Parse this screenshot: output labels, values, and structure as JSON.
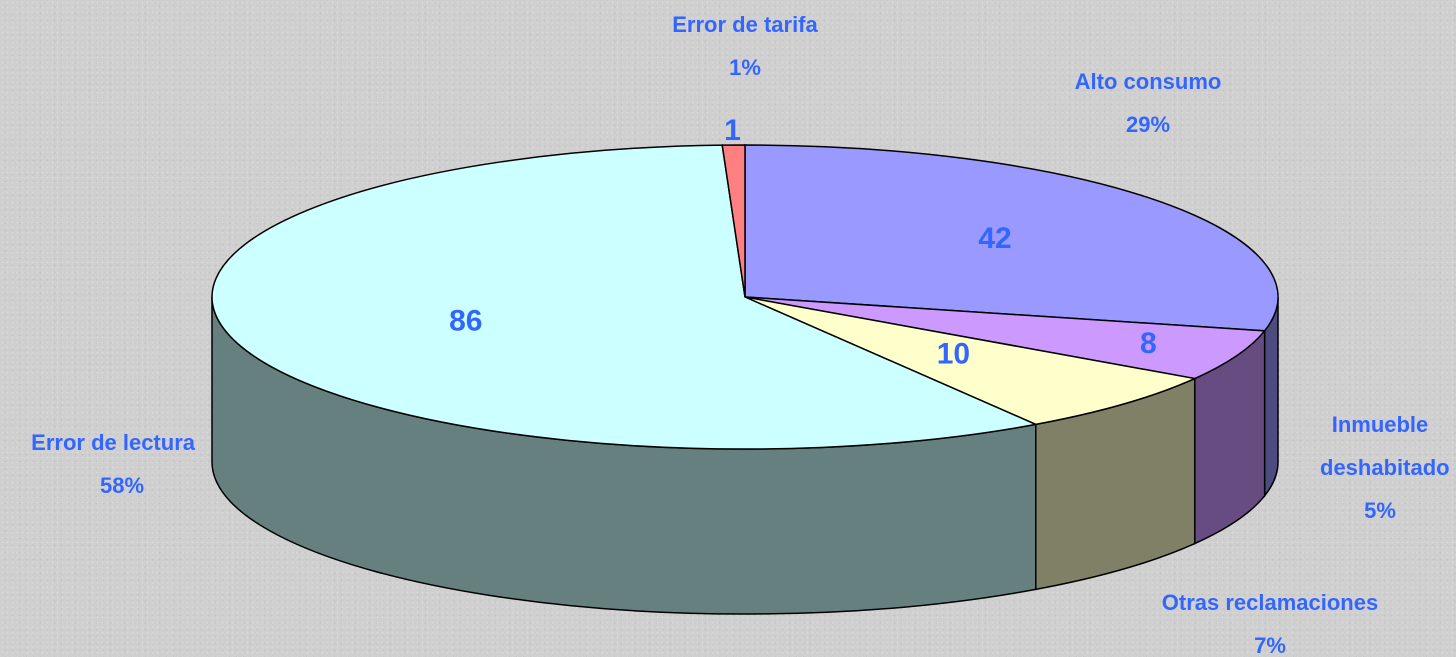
{
  "chart_data": {
    "type": "pie3d",
    "categories": [
      "Alto consumo",
      "Inmueble deshabitado",
      "Otras reclamaciones",
      "Error de lectura",
      "Error de tarifa"
    ],
    "values": [
      42,
      8,
      10,
      86,
      1
    ],
    "percent_labels": [
      "29%",
      "5%",
      "7%",
      "58%",
      "1%"
    ],
    "colors": [
      "#9999ff",
      "#cc99ff",
      "#ffffcc",
      "#ccffff",
      "#ff8080"
    ],
    "side_colors": [
      "#4c4c80",
      "#664c80",
      "#808066",
      "#668080",
      "#804040"
    ]
  }
}
